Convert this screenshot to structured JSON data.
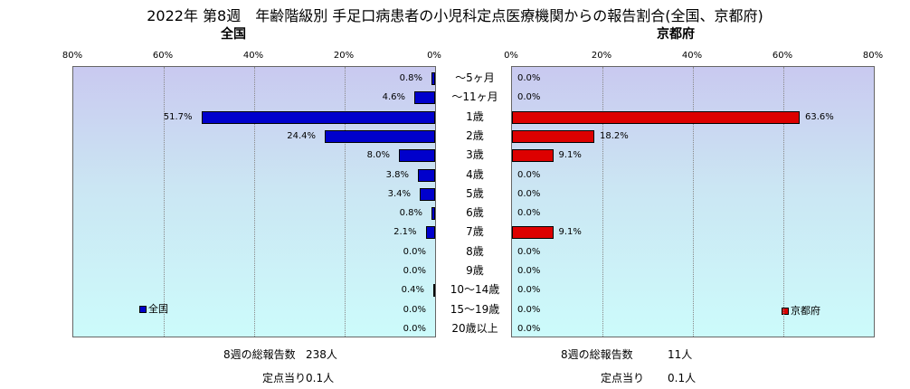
{
  "title": "2022年 第8週　年齢階級別 手足口病患者の小児科定点医療機関からの報告割合(全国、京都府)",
  "chart_data": [
    {
      "type": "bar",
      "orientation": "horizontal",
      "title": "全国",
      "legend": "全国",
      "legend_position": "bottom-left",
      "color": "#0000cc",
      "xlim": [
        0,
        80
      ],
      "x_direction": "reversed",
      "ticks": [
        "80%",
        "60%",
        "40%",
        "20%",
        "0%"
      ],
      "categories": [
        "～5ヶ月",
        "～11ヶ月",
        "1歳",
        "2歳",
        "3歳",
        "4歳",
        "5歳",
        "6歳",
        "7歳",
        "8歳",
        "9歳",
        "10～14歳",
        "15～19歳",
        "20歳以上"
      ],
      "values": [
        0.8,
        4.6,
        51.7,
        24.4,
        8.0,
        3.8,
        3.4,
        0.8,
        2.1,
        0.0,
        0.0,
        0.4,
        0.0,
        0.0
      ],
      "labels": [
        "0.8%",
        "4.6%",
        "51.7%",
        "24.4%",
        "8.0%",
        "3.8%",
        "3.4%",
        "0.8%",
        "2.1%",
        "0.0%",
        "0.0%",
        "0.4%",
        "0.0%",
        "0.0%"
      ]
    },
    {
      "type": "bar",
      "orientation": "horizontal",
      "title": "京都府",
      "legend": "京都府",
      "legend_position": "bottom-right",
      "color": "#dd0000",
      "xlim": [
        0,
        80
      ],
      "ticks": [
        "0%",
        "20%",
        "40%",
        "60%",
        "80%"
      ],
      "categories": [
        "～5ヶ月",
        "～11ヶ月",
        "1歳",
        "2歳",
        "3歳",
        "4歳",
        "5歳",
        "6歳",
        "7歳",
        "8歳",
        "9歳",
        "10～14歳",
        "15～19歳",
        "20歳以上"
      ],
      "values": [
        0.0,
        0.0,
        63.6,
        18.2,
        9.1,
        0.0,
        0.0,
        0.0,
        9.1,
        0.0,
        0.0,
        0.0,
        0.0,
        0.0
      ],
      "labels": [
        "0.0%",
        "0.0%",
        "63.6%",
        "18.2%",
        "9.1%",
        "0.0%",
        "0.0%",
        "0.0%",
        "9.1%",
        "0.0%",
        "0.0%",
        "0.0%",
        "0.0%",
        "0.0%"
      ]
    }
  ],
  "footer": {
    "left": {
      "total_label": "8週の総報告数",
      "total_value": "238人",
      "per_label": "定点当り",
      "per_value": "0.1人"
    },
    "right": {
      "total_label": "8週の総報告数",
      "total_value": "11人",
      "per_label": "定点当り",
      "per_value": "0.1人"
    }
  }
}
